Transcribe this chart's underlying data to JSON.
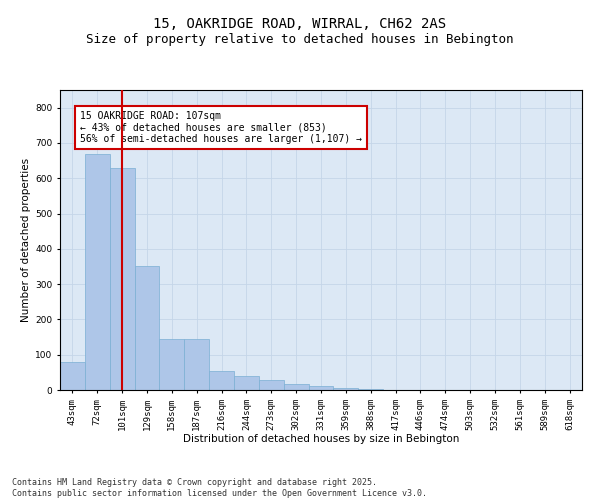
{
  "title_line1": "15, OAKRIDGE ROAD, WIRRAL, CH62 2AS",
  "title_line2": "Size of property relative to detached houses in Bebington",
  "xlabel": "Distribution of detached houses by size in Bebington",
  "ylabel": "Number of detached properties",
  "categories": [
    "43sqm",
    "72sqm",
    "101sqm",
    "129sqm",
    "158sqm",
    "187sqm",
    "216sqm",
    "244sqm",
    "273sqm",
    "302sqm",
    "331sqm",
    "359sqm",
    "388sqm",
    "417sqm",
    "446sqm",
    "474sqm",
    "503sqm",
    "532sqm",
    "561sqm",
    "589sqm",
    "618sqm"
  ],
  "values": [
    80,
    670,
    630,
    350,
    145,
    145,
    55,
    40,
    28,
    18,
    10,
    5,
    2,
    0,
    0,
    0,
    0,
    0,
    0,
    0,
    1
  ],
  "bar_color": "#aec6e8",
  "bar_edge_color": "#7aafd4",
  "vline_x": 2,
  "vline_color": "#cc0000",
  "annotation_text": "15 OAKRIDGE ROAD: 107sqm\n← 43% of detached houses are smaller (853)\n56% of semi-detached houses are larger (1,107) →",
  "annotation_box_color": "#ffffff",
  "annotation_box_edge_color": "#cc0000",
  "ylim": [
    0,
    850
  ],
  "yticks": [
    0,
    100,
    200,
    300,
    400,
    500,
    600,
    700,
    800
  ],
  "grid_color": "#c5d5e8",
  "background_color": "#dce8f5",
  "footnote": "Contains HM Land Registry data © Crown copyright and database right 2025.\nContains public sector information licensed under the Open Government Licence v3.0.",
  "title_fontsize": 10,
  "subtitle_fontsize": 9,
  "axis_label_fontsize": 7.5,
  "tick_fontsize": 6.5,
  "annotation_fontsize": 7,
  "footnote_fontsize": 6
}
